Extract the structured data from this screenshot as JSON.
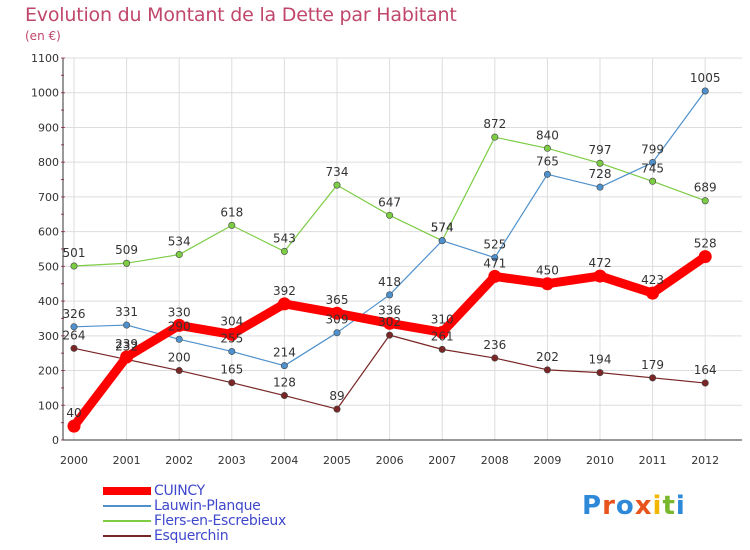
{
  "title": "Evolution du Montant de la Dette par Habitant",
  "subtitle": "(en €)",
  "logo": {
    "letters": [
      "P",
      "r",
      "o",
      "x",
      "i",
      "t",
      "i"
    ],
    "colors": [
      "#2e8ad8",
      "#e8541e",
      "#2e8ad8",
      "#e8541e",
      "#f2b705",
      "#79b82d",
      "#2e8ad8"
    ]
  },
  "chart_data": {
    "type": "line",
    "x": [
      "2000",
      "2001",
      "2002",
      "2003",
      "2004",
      "2005",
      "2006",
      "2007",
      "2008",
      "2009",
      "2010",
      "2011",
      "2012"
    ],
    "ylim": [
      0,
      1100
    ],
    "yticks": [
      "0",
      "100",
      "200",
      "300",
      "400",
      "500",
      "600",
      "700",
      "800",
      "900",
      "1000",
      "1100"
    ],
    "grid": true,
    "legend_position": "bottom-left",
    "series": [
      {
        "name": "CUINCY",
        "color": "#ff0000",
        "values": [
          40,
          239,
          330,
          304,
          392,
          365,
          336,
          310,
          471,
          450,
          472,
          423,
          528
        ],
        "labels": [
          "40",
          "239",
          "330",
          "304",
          "392",
          "365",
          "336",
          "310",
          "471",
          "450",
          "472",
          "423",
          "528"
        ]
      },
      {
        "name": "Lauwin-Planque",
        "color": "#4f91cd",
        "values": [
          326,
          331,
          290,
          255,
          214,
          309,
          418,
          574,
          525,
          765,
          728,
          799,
          1005
        ],
        "labels": [
          "326",
          "331",
          "290",
          "255",
          "214",
          "309",
          "418",
          "574",
          "525",
          "765",
          "728",
          "799",
          "1005"
        ]
      },
      {
        "name": "Flers-en-Escrebieux",
        "color": "#7ccc44",
        "values": [
          501,
          509,
          534,
          618,
          543,
          734,
          647,
          574,
          872,
          840,
          797,
          745,
          689
        ],
        "labels": [
          "501",
          "509",
          "534",
          "618",
          "543",
          "734",
          "647",
          "574",
          "872",
          "840",
          "797",
          "745",
          "689"
        ]
      },
      {
        "name": "Esquerchin",
        "color": "#7a2626",
        "values": [
          264,
          232,
          200,
          165,
          128,
          89,
          302,
          261,
          236,
          202,
          194,
          179,
          164
        ],
        "labels": [
          "264",
          "232",
          "200",
          "165",
          "128",
          "89",
          "302",
          "261",
          "236",
          "202",
          "194",
          "179",
          "164"
        ]
      }
    ]
  }
}
